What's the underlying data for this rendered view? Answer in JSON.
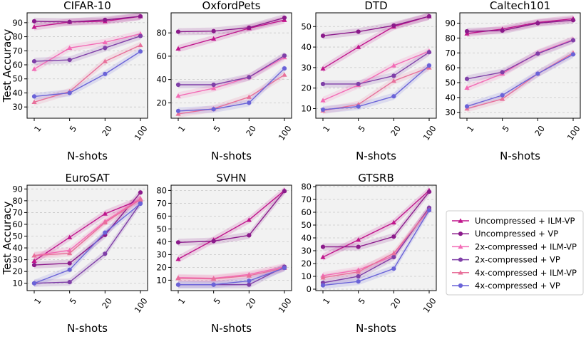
{
  "figure": {
    "x_label": "N-shots",
    "y_label": "Test Accuracy"
  },
  "legend": {
    "entries": [
      {
        "name": "Uncompressed + ILM-VP",
        "color": "#c0158c",
        "marker": "triangle"
      },
      {
        "name": "Uncompressed + VP",
        "color": "#8b1a8b",
        "marker": "circle"
      },
      {
        "name": "2x-compressed + ILM-VP",
        "color": "#f36ab5",
        "marker": "triangle"
      },
      {
        "name": "2x-compressed + VP",
        "color": "#7f3fa8",
        "marker": "circle"
      },
      {
        "name": "4x-compressed + ILM-VP",
        "color": "#e8709a",
        "marker": "triangle"
      },
      {
        "name": "4x-compressed + VP",
        "color": "#6a63d8",
        "marker": "circle"
      }
    ]
  },
  "chart_data": [
    {
      "type": "line",
      "title": "CIFAR-10",
      "xlabel": "N-shots",
      "ylabel": "Test Accuracy",
      "categories": [
        "1",
        "5",
        "20",
        "100"
      ],
      "ylim": [
        23,
        96
      ],
      "yticks": [
        30,
        40,
        50,
        60,
        70,
        80,
        90
      ],
      "series": [
        {
          "name": "Uncompressed + ILM-VP",
          "values": [
            87,
            90.5,
            91,
            94.5
          ]
        },
        {
          "name": "Uncompressed + VP",
          "values": [
            91,
            90.5,
            92,
            94.5
          ]
        },
        {
          "name": "2x-compressed + ILM-VP",
          "values": [
            57,
            72,
            76,
            82
          ]
        },
        {
          "name": "2x-compressed + VP",
          "values": [
            62.5,
            63.5,
            72,
            80.5
          ]
        },
        {
          "name": "4x-compressed + ILM-VP",
          "values": [
            33.5,
            41,
            62.5,
            74
          ]
        },
        {
          "name": "4x-compressed + VP",
          "values": [
            37.5,
            40,
            53.5,
            69.5
          ]
        }
      ]
    },
    {
      "type": "line",
      "title": "OxfordPets",
      "xlabel": "N-shots",
      "ylabel": "",
      "categories": [
        "1",
        "5",
        "20",
        "100"
      ],
      "ylim": [
        8,
        96
      ],
      "yticks": [
        20,
        40,
        60,
        80
      ],
      "series": [
        {
          "name": "Uncompressed + ILM-VP",
          "values": [
            66.5,
            75,
            84,
            91
          ]
        },
        {
          "name": "Uncompressed + VP",
          "values": [
            81,
            81.5,
            84.5,
            93
          ]
        },
        {
          "name": "2x-compressed + ILM-VP",
          "values": [
            26,
            32.5,
            42,
            59
          ]
        },
        {
          "name": "2x-compressed + VP",
          "values": [
            35.5,
            35.5,
            42,
            60.5
          ]
        },
        {
          "name": "4x-compressed + ILM-VP",
          "values": [
            10.5,
            15,
            25,
            44
          ]
        },
        {
          "name": "4x-compressed + VP",
          "values": [
            13,
            14.5,
            20,
            49.5
          ]
        }
      ]
    },
    {
      "type": "line",
      "title": "DTD",
      "xlabel": "N-shots",
      "ylabel": "",
      "categories": [
        "1",
        "5",
        "20",
        "100"
      ],
      "ylim": [
        6,
        56
      ],
      "yticks": [
        10,
        20,
        30,
        40,
        50
      ],
      "series": [
        {
          "name": "Uncompressed + ILM-VP",
          "values": [
            29.5,
            40,
            50,
            55
          ]
        },
        {
          "name": "Uncompressed + VP",
          "values": [
            45.5,
            47.5,
            50.5,
            55
          ]
        },
        {
          "name": "2x-compressed + ILM-VP",
          "values": [
            14,
            21.5,
            31,
            38
          ]
        },
        {
          "name": "2x-compressed + VP",
          "values": [
            22,
            22,
            26,
            37.5
          ]
        },
        {
          "name": "4x-compressed + ILM-VP",
          "values": [
            9,
            12,
            23.5,
            30
          ]
        },
        {
          "name": "4x-compressed + VP",
          "values": [
            9.5,
            11,
            16,
            31
          ]
        }
      ]
    },
    {
      "type": "line",
      "title": "Caltech101",
      "xlabel": "N-shots",
      "ylabel": "",
      "categories": [
        "1",
        "5",
        "20",
        "100"
      ],
      "ylim": [
        27,
        96
      ],
      "yticks": [
        30,
        40,
        50,
        60,
        70,
        80,
        90
      ],
      "series": [
        {
          "name": "Uncompressed + ILM-VP",
          "values": [
            83,
            86,
            90.5,
            93
          ]
        },
        {
          "name": "Uncompressed + VP",
          "values": [
            84.5,
            85,
            90,
            92
          ]
        },
        {
          "name": "2x-compressed + ILM-VP",
          "values": [
            46.5,
            56,
            70,
            79
          ]
        },
        {
          "name": "2x-compressed + VP",
          "values": [
            52.5,
            57,
            69.5,
            78.5
          ]
        },
        {
          "name": "4x-compressed + ILM-VP",
          "values": [
            32.5,
            39,
            56,
            70
          ]
        },
        {
          "name": "4x-compressed + VP",
          "values": [
            34,
            41.5,
            56,
            69
          ]
        }
      ]
    },
    {
      "type": "line",
      "title": "EuroSAT",
      "xlabel": "N-shots",
      "ylabel": "Test Accuracy",
      "categories": [
        "1",
        "5",
        "20",
        "100"
      ],
      "ylim": [
        5,
        92
      ],
      "yticks": [
        10,
        20,
        30,
        40,
        50,
        60,
        70,
        80,
        90
      ],
      "series": [
        {
          "name": "Uncompressed + ILM-VP",
          "values": [
            29,
            49,
            69,
            81
          ]
        },
        {
          "name": "Uncompressed + VP",
          "values": [
            25.5,
            27,
            51,
            87
          ]
        },
        {
          "name": "2x-compressed + ILM-VP",
          "values": [
            33.5,
            38,
            62.5,
            82
          ]
        },
        {
          "name": "2x-compressed + VP",
          "values": [
            10,
            11,
            35,
            78
          ]
        },
        {
          "name": "4x-compressed + ILM-VP",
          "values": [
            33.5,
            35.5,
            61.5,
            81
          ]
        },
        {
          "name": "4x-compressed + VP",
          "values": [
            10,
            21.5,
            53,
            77.5
          ]
        }
      ]
    },
    {
      "type": "line",
      "title": "SVHN",
      "xlabel": "N-shots",
      "ylabel": "",
      "categories": [
        "1",
        "5",
        "20",
        "100"
      ],
      "ylim": [
        3,
        83
      ],
      "yticks": [
        10,
        20,
        30,
        40,
        50,
        60,
        70,
        80
      ],
      "series": [
        {
          "name": "Uncompressed + ILM-VP",
          "values": [
            26.5,
            41.5,
            57,
            80
          ]
        },
        {
          "name": "Uncompressed + VP",
          "values": [
            39.5,
            40.5,
            45,
            79.5
          ]
        },
        {
          "name": "2x-compressed + ILM-VP",
          "values": [
            12,
            11.5,
            14.5,
            20.5
          ]
        },
        {
          "name": "2x-compressed + VP",
          "values": [
            6.5,
            6.5,
            6.5,
            20.5
          ]
        },
        {
          "name": "4x-compressed + ILM-VP",
          "values": [
            11.5,
            11,
            13.5,
            19.5
          ]
        },
        {
          "name": "4x-compressed + VP",
          "values": [
            6.5,
            6.5,
            9.5,
            19.5
          ]
        }
      ]
    },
    {
      "type": "line",
      "title": "GTSRB",
      "xlabel": "N-shots",
      "ylabel": "",
      "categories": [
        "1",
        "5",
        "20",
        "100"
      ],
      "ylim": [
        0,
        80
      ],
      "yticks": [
        0,
        10,
        20,
        30,
        40,
        50,
        60,
        70,
        80
      ],
      "series": [
        {
          "name": "Uncompressed + ILM-VP",
          "values": [
            25,
            38.5,
            52,
            77
          ]
        },
        {
          "name": "Uncompressed + VP",
          "values": [
            33,
            33,
            41,
            76
          ]
        },
        {
          "name": "2x-compressed + ILM-VP",
          "values": [
            10.5,
            15,
            26,
            63.5
          ]
        },
        {
          "name": "2x-compressed + VP",
          "values": [
            5,
            10,
            25,
            63.5
          ]
        },
        {
          "name": "4x-compressed + ILM-VP",
          "values": [
            9,
            13.5,
            28,
            62
          ]
        },
        {
          "name": "4x-compressed + VP",
          "values": [
            3,
            6,
            16,
            61.5
          ]
        }
      ]
    }
  ]
}
